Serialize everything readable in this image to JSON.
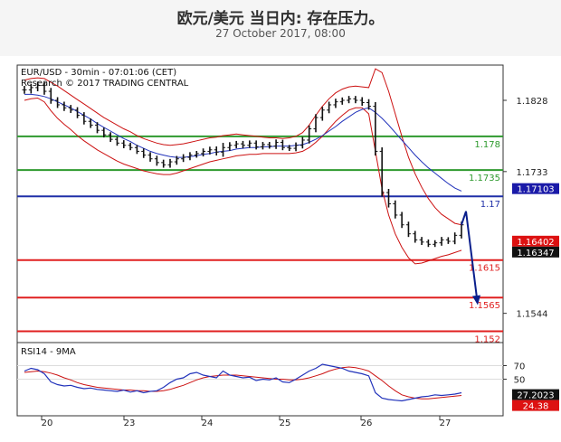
{
  "header": {
    "title": "欧元/美元 当日内: 存在压力。",
    "date": "27 October 2017, 08:00"
  },
  "chart_data": {
    "type": "line",
    "info_line1": "EUR/USD - 30min - 07:01:06 (CET)",
    "info_line2": "Research © 2017 TRADING CENTRAL",
    "price_axis": {
      "ylim": [
        1.1505,
        1.1875
      ],
      "ticks": [
        1.1828,
        1.1733,
        1.1544
      ]
    },
    "x_labels": [
      "20",
      "23",
      "24",
      "25",
      "26",
      "27"
    ],
    "levels": [
      {
        "value": 1.178,
        "label": "1.178",
        "color": "#2e9a2e"
      },
      {
        "value": 1.1735,
        "label": "1.1735",
        "color": "#2e9a2e"
      },
      {
        "value": 1.17,
        "label": "1.17",
        "color": "#1f2fa8"
      },
      {
        "value": 1.1615,
        "label": "1.1615",
        "color": "#e02020"
      },
      {
        "value": 1.1565,
        "label": "1.1565",
        "color": "#e02020"
      },
      {
        "value": 1.152,
        "label": "1.152",
        "color": "#e02020"
      }
    ],
    "badges": [
      {
        "value": 1.17103,
        "label": "1.17103",
        "color": "#1a1aa8"
      },
      {
        "value": 1.16402,
        "label": "1.16402",
        "color": "#dd1111"
      },
      {
        "value": 1.16347,
        "label": "1.16347",
        "color": "#111111"
      }
    ],
    "price_close": [
      1.1842,
      1.1845,
      1.1848,
      1.184,
      1.1828,
      1.1822,
      1.1818,
      1.1815,
      1.1808,
      1.18,
      1.1795,
      1.1788,
      1.1782,
      1.1776,
      1.1771,
      1.1768,
      1.1765,
      1.176,
      1.1755,
      1.175,
      1.1745,
      1.1742,
      1.1746,
      1.175,
      1.1752,
      1.1755,
      1.1757,
      1.176,
      1.1762,
      1.1759,
      1.1765,
      1.1768,
      1.177,
      1.1768,
      1.1771,
      1.1766,
      1.1769,
      1.1767,
      1.1772,
      1.1765,
      1.1764,
      1.1768,
      1.1775,
      1.179,
      1.1805,
      1.1815,
      1.1822,
      1.1826,
      1.1828,
      1.183,
      1.1828,
      1.1825,
      1.182,
      1.176,
      1.1705,
      1.169,
      1.1675,
      1.1662,
      1.165,
      1.1642,
      1.1639,
      1.1636,
      1.1638,
      1.1642,
      1.164,
      1.1648,
      1.1662
    ],
    "price_range": [
      0.0015,
      0.0014,
      0.0014,
      0.0013,
      0.0013,
      0.0012,
      0.0012,
      0.0011,
      0.0011,
      0.0012,
      0.0011,
      0.0011,
      0.001,
      0.001,
      0.001,
      0.0011,
      0.001,
      0.001,
      0.0011,
      0.0011,
      0.0012,
      0.0011,
      0.0011,
      0.0011,
      0.0012,
      0.0011,
      0.001,
      0.0011,
      0.0012,
      0.0013,
      0.0018,
      0.0012,
      0.0011,
      0.0011,
      0.001,
      0.001,
      0.001,
      0.001,
      0.0011,
      0.001,
      0.001,
      0.0011,
      0.0012,
      0.0013,
      0.0013,
      0.0012,
      0.0012,
      0.0012,
      0.0011,
      0.0011,
      0.0011,
      0.0012,
      0.0013,
      0.0016,
      0.0015,
      0.0014,
      0.0013,
      0.0012,
      0.0012,
      0.0011,
      0.0011,
      0.001,
      0.001,
      0.0011,
      0.001,
      0.0011,
      0.0012
    ],
    "ma_blue": [
      1.1836,
      1.1836,
      1.1835,
      1.1833,
      1.183,
      1.1826,
      1.1822,
      1.1818,
      1.1813,
      1.1808,
      1.1803,
      1.1797,
      1.1792,
      1.1787,
      1.1782,
      1.1777,
      1.1773,
      1.1768,
      1.1764,
      1.176,
      1.1757,
      1.1755,
      1.1753,
      1.1752,
      1.1752,
      1.1753,
      1.1754,
      1.1756,
      1.1757,
      1.1759,
      1.176,
      1.1761,
      1.1763,
      1.1764,
      1.1765,
      1.1765,
      1.1766,
      1.1766,
      1.1767,
      1.1767,
      1.1767,
      1.1768,
      1.1769,
      1.1772,
      1.1776,
      1.1781,
      1.1787,
      1.1793,
      1.18,
      1.1806,
      1.1812,
      1.1816,
      1.1818,
      1.1812,
      1.1804,
      1.1795,
      1.1785,
      1.1775,
      1.1765,
      1.1755,
      1.1746,
      1.1738,
      1.1731,
      1.1724,
      1.1717,
      1.1711,
      1.1707
    ],
    "band_upper": [
      1.1855,
      1.1857,
      1.1858,
      1.1857,
      1.1852,
      1.1847,
      1.1841,
      1.1835,
      1.1829,
      1.1823,
      1.1817,
      1.1811,
      1.1805,
      1.18,
      1.1795,
      1.179,
      1.1786,
      1.1781,
      1.1777,
      1.1774,
      1.1771,
      1.1769,
      1.1768,
      1.1769,
      1.177,
      1.1772,
      1.1774,
      1.1776,
      1.1778,
      1.1779,
      1.1781,
      1.1782,
      1.1783,
      1.1782,
      1.1781,
      1.178,
      1.1779,
      1.1778,
      1.1778,
      1.1777,
      1.1778,
      1.178,
      1.1785,
      1.1795,
      1.1808,
      1.182,
      1.183,
      1.1838,
      1.1843,
      1.1846,
      1.1847,
      1.1846,
      1.1845,
      1.187,
      1.1865,
      1.184,
      1.181,
      1.178,
      1.1752,
      1.173,
      1.1712,
      1.1697,
      1.1685,
      1.1676,
      1.167,
      1.1664,
      1.1662
    ],
    "band_lower": [
      1.1828,
      1.183,
      1.1831,
      1.1826,
      1.1814,
      1.1804,
      1.1796,
      1.1789,
      1.1781,
      1.1774,
      1.1768,
      1.1762,
      1.1757,
      1.1752,
      1.1747,
      1.1743,
      1.174,
      1.1737,
      1.1734,
      1.1732,
      1.173,
      1.1729,
      1.1729,
      1.1731,
      1.1734,
      1.1737,
      1.174,
      1.1743,
      1.1746,
      1.1748,
      1.175,
      1.1752,
      1.1754,
      1.1755,
      1.1756,
      1.1756,
      1.1757,
      1.1757,
      1.1757,
      1.1757,
      1.1757,
      1.1758,
      1.176,
      1.1765,
      1.1772,
      1.178,
      1.179,
      1.18,
      1.1808,
      1.1815,
      1.1818,
      1.1818,
      1.181,
      1.176,
      1.171,
      1.1675,
      1.165,
      1.1632,
      1.1618,
      1.161,
      1.1611,
      1.1614,
      1.1617,
      1.162,
      1.1622,
      1.1625,
      1.1628
    ],
    "forecast_arrow": [
      [
        1.1662,
        1.1668
      ],
      [
        1.1675,
        1.1555
      ]
    ],
    "rsi_label": "RSI14 - 9MA",
    "rsi_axis": {
      "ylim": [
        0,
        100
      ],
      "ticks": [
        70,
        50
      ]
    },
    "rsi": [
      62,
      66,
      64,
      58,
      46,
      42,
      40,
      41,
      38,
      36,
      37,
      35,
      34,
      33,
      32,
      34,
      31,
      33,
      30,
      32,
      33,
      38,
      45,
      50,
      52,
      58,
      60,
      56,
      54,
      52,
      62,
      56,
      54,
      52,
      53,
      48,
      50,
      49,
      52,
      46,
      45,
      50,
      56,
      62,
      66,
      72,
      70,
      68,
      66,
      62,
      60,
      58,
      55,
      30,
      22,
      20,
      19,
      18,
      20,
      22,
      24,
      25,
      27,
      26,
      27,
      28,
      30
    ],
    "rsi_ma": [
      60,
      61,
      62,
      61,
      59,
      56,
      52,
      49,
      45,
      42,
      40,
      38,
      37,
      36,
      35,
      34,
      34,
      33,
      33,
      32,
      32,
      33,
      35,
      38,
      41,
      45,
      49,
      52,
      54,
      55,
      56,
      56,
      56,
      55,
      54,
      53,
      52,
      51,
      50,
      50,
      49,
      49,
      50,
      52,
      55,
      58,
      62,
      65,
      67,
      68,
      67,
      65,
      62,
      55,
      48,
      40,
      33,
      27,
      24,
      22,
      21,
      21,
      22,
      23,
      24,
      25,
      26
    ],
    "rsi_badges": [
      {
        "value": 27.2023,
        "label": "27.2023",
        "color": "#111111"
      },
      {
        "value": 24.38,
        "label": "24.38",
        "color": "#dd1111"
      }
    ]
  }
}
